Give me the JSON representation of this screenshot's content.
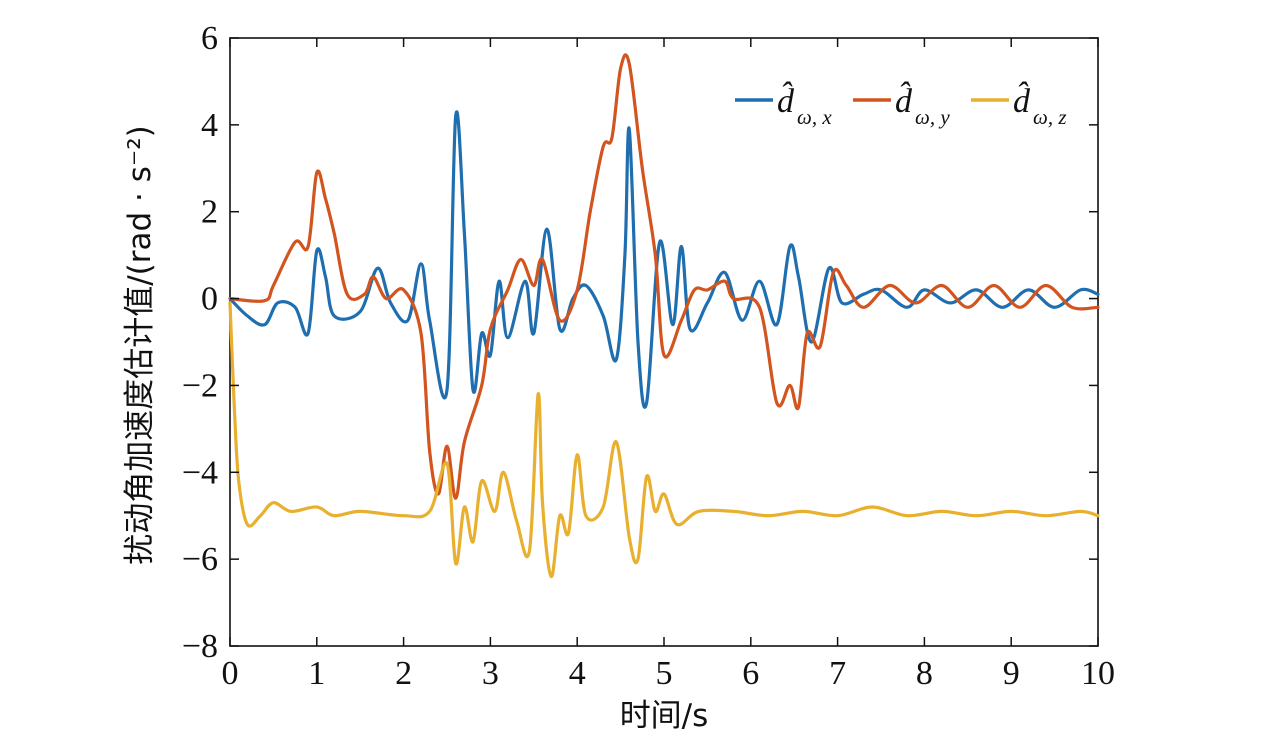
{
  "chart_data": {
    "type": "line",
    "xlabel": "时间/s",
    "ylabel": "扰动角加速度估计值/(rad · s⁻²)",
    "xlim": [
      0,
      10
    ],
    "ylim": [
      -8,
      6
    ],
    "x_ticks": [
      0,
      1,
      2,
      3,
      4,
      5,
      6,
      7,
      8,
      9,
      10
    ],
    "y_ticks": [
      -8,
      -6,
      -4,
      -2,
      0,
      2,
      4,
      6
    ],
    "x_tick_labels": [
      "0",
      "1",
      "2",
      "3",
      "4",
      "5",
      "6",
      "7",
      "8",
      "9",
      "10"
    ],
    "y_tick_labels": [
      "−8",
      "−6",
      "−4",
      "−2",
      "0",
      "2",
      "4",
      "6"
    ],
    "grid": false,
    "legend_position": "top-right",
    "series": [
      {
        "name": "d̂ω,x",
        "legend_symbol": "d̂",
        "legend_sub": "ω, x",
        "color": "#1f6fb0",
        "points": [
          [
            0,
            0
          ],
          [
            0.2,
            -0.4
          ],
          [
            0.4,
            -0.6
          ],
          [
            0.55,
            -0.1
          ],
          [
            0.75,
            -0.2
          ],
          [
            0.9,
            -0.8
          ],
          [
            1.0,
            1.1
          ],
          [
            1.1,
            0.5
          ],
          [
            1.2,
            -0.4
          ],
          [
            1.5,
            -0.3
          ],
          [
            1.7,
            0.7
          ],
          [
            1.85,
            -0.1
          ],
          [
            2.05,
            -0.5
          ],
          [
            2.2,
            0.8
          ],
          [
            2.3,
            -0.5
          ],
          [
            2.5,
            -2.1
          ],
          [
            2.6,
            4.2
          ],
          [
            2.7,
            1.5
          ],
          [
            2.8,
            -2.1
          ],
          [
            2.9,
            -0.8
          ],
          [
            3.0,
            -1.3
          ],
          [
            3.1,
            0.4
          ],
          [
            3.2,
            -0.9
          ],
          [
            3.4,
            0.4
          ],
          [
            3.5,
            -0.8
          ],
          [
            3.65,
            1.6
          ],
          [
            3.8,
            -0.7
          ],
          [
            3.95,
            0.0
          ],
          [
            4.1,
            0.3
          ],
          [
            4.3,
            -0.4
          ],
          [
            4.45,
            -1.4
          ],
          [
            4.55,
            1.0
          ],
          [
            4.6,
            3.9
          ],
          [
            4.7,
            -1.0
          ],
          [
            4.8,
            -2.4
          ],
          [
            4.95,
            1.3
          ],
          [
            5.1,
            -0.6
          ],
          [
            5.2,
            1.2
          ],
          [
            5.3,
            -0.7
          ],
          [
            5.5,
            -0.1
          ],
          [
            5.7,
            0.6
          ],
          [
            5.9,
            -0.5
          ],
          [
            6.1,
            0.4
          ],
          [
            6.3,
            -0.6
          ],
          [
            6.45,
            1.2
          ],
          [
            6.55,
            0.5
          ],
          [
            6.7,
            -1.0
          ],
          [
            6.9,
            0.7
          ],
          [
            7.05,
            -0.1
          ],
          [
            7.3,
            0.1
          ],
          [
            7.5,
            0.2
          ],
          [
            7.8,
            -0.2
          ],
          [
            8.0,
            0.2
          ],
          [
            8.3,
            -0.1
          ],
          [
            8.6,
            0.2
          ],
          [
            8.9,
            -0.2
          ],
          [
            9.2,
            0.2
          ],
          [
            9.5,
            -0.2
          ],
          [
            9.8,
            0.2
          ],
          [
            10.0,
            0.1
          ]
        ]
      },
      {
        "name": "d̂ω,y",
        "legend_symbol": "d̂",
        "legend_sub": "ω, y",
        "color": "#d2541e",
        "points": [
          [
            0,
            0
          ],
          [
            0.4,
            -0.05
          ],
          [
            0.5,
            0.3
          ],
          [
            0.75,
            1.3
          ],
          [
            0.9,
            1.2
          ],
          [
            1.0,
            2.9
          ],
          [
            1.1,
            2.3
          ],
          [
            1.2,
            1.5
          ],
          [
            1.35,
            0.1
          ],
          [
            1.55,
            0.1
          ],
          [
            1.65,
            0.5
          ],
          [
            1.8,
            0.0
          ],
          [
            2.0,
            0.2
          ],
          [
            2.2,
            -0.8
          ],
          [
            2.3,
            -3.5
          ],
          [
            2.4,
            -4.5
          ],
          [
            2.5,
            -3.4
          ],
          [
            2.6,
            -4.6
          ],
          [
            2.7,
            -3.3
          ],
          [
            2.9,
            -2.0
          ],
          [
            3.0,
            -0.7
          ],
          [
            3.2,
            0.2
          ],
          [
            3.35,
            0.9
          ],
          [
            3.5,
            0.3
          ],
          [
            3.6,
            0.9
          ],
          [
            3.8,
            -0.5
          ],
          [
            4.0,
            0.2
          ],
          [
            4.15,
            2.0
          ],
          [
            4.3,
            3.5
          ],
          [
            4.4,
            3.7
          ],
          [
            4.5,
            5.3
          ],
          [
            4.6,
            5.4
          ],
          [
            4.75,
            3.0
          ],
          [
            4.9,
            1.0
          ],
          [
            5.0,
            -1.3
          ],
          [
            5.2,
            -0.5
          ],
          [
            5.35,
            0.2
          ],
          [
            5.5,
            0.2
          ],
          [
            5.7,
            0.4
          ],
          [
            5.8,
            0.0
          ],
          [
            6.1,
            -0.2
          ],
          [
            6.3,
            -2.4
          ],
          [
            6.45,
            -2.0
          ],
          [
            6.55,
            -2.5
          ],
          [
            6.65,
            -0.8
          ],
          [
            6.8,
            -1.1
          ],
          [
            6.95,
            0.6
          ],
          [
            7.1,
            0.3
          ],
          [
            7.3,
            -0.2
          ],
          [
            7.6,
            0.3
          ],
          [
            7.9,
            -0.1
          ],
          [
            8.2,
            0.3
          ],
          [
            8.5,
            -0.2
          ],
          [
            8.8,
            0.3
          ],
          [
            9.1,
            -0.2
          ],
          [
            9.4,
            0.3
          ],
          [
            9.7,
            -0.2
          ],
          [
            10.0,
            -0.2
          ]
        ]
      },
      {
        "name": "d̂ω,z",
        "legend_symbol": "d̂",
        "legend_sub": "ω, z",
        "color": "#e8b02e",
        "points": [
          [
            0,
            -0.1
          ],
          [
            0.05,
            -2.5
          ],
          [
            0.1,
            -4.2
          ],
          [
            0.2,
            -5.2
          ],
          [
            0.35,
            -5.0
          ],
          [
            0.5,
            -4.7
          ],
          [
            0.7,
            -4.9
          ],
          [
            1.0,
            -4.8
          ],
          [
            1.2,
            -5.0
          ],
          [
            1.5,
            -4.9
          ],
          [
            2.0,
            -5.0
          ],
          [
            2.3,
            -4.9
          ],
          [
            2.5,
            -3.8
          ],
          [
            2.6,
            -6.1
          ],
          [
            2.7,
            -4.8
          ],
          [
            2.8,
            -5.6
          ],
          [
            2.9,
            -4.2
          ],
          [
            3.05,
            -4.9
          ],
          [
            3.15,
            -4.0
          ],
          [
            3.3,
            -5.1
          ],
          [
            3.45,
            -5.8
          ],
          [
            3.55,
            -2.2
          ],
          [
            3.6,
            -4.7
          ],
          [
            3.7,
            -6.4
          ],
          [
            3.8,
            -5.0
          ],
          [
            3.9,
            -5.4
          ],
          [
            4.0,
            -3.6
          ],
          [
            4.1,
            -5.0
          ],
          [
            4.3,
            -4.8
          ],
          [
            4.45,
            -3.3
          ],
          [
            4.6,
            -5.5
          ],
          [
            4.7,
            -6.0
          ],
          [
            4.8,
            -4.1
          ],
          [
            4.9,
            -4.9
          ],
          [
            5.0,
            -4.5
          ],
          [
            5.15,
            -5.2
          ],
          [
            5.4,
            -4.9
          ],
          [
            5.8,
            -4.9
          ],
          [
            6.2,
            -5.0
          ],
          [
            6.6,
            -4.9
          ],
          [
            7.0,
            -5.0
          ],
          [
            7.4,
            -4.8
          ],
          [
            7.8,
            -5.0
          ],
          [
            8.2,
            -4.9
          ],
          [
            8.6,
            -5.0
          ],
          [
            9.0,
            -4.9
          ],
          [
            9.4,
            -5.0
          ],
          [
            9.8,
            -4.9
          ],
          [
            10.0,
            -5.0
          ]
        ]
      }
    ]
  }
}
